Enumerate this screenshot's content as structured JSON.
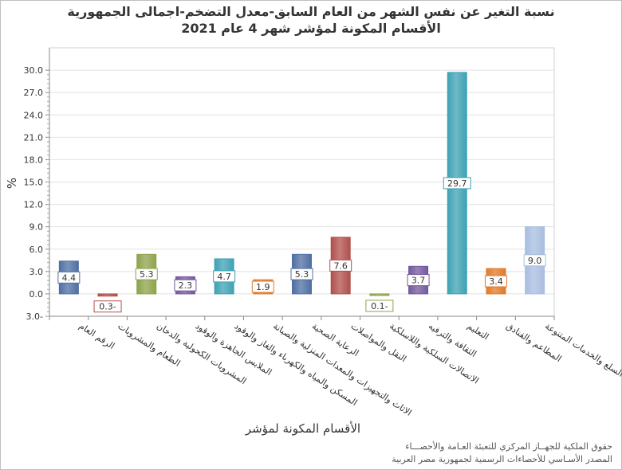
{
  "chart_data": {
    "type": "bar",
    "title": [
      "نسبة التغير عن نفس الشهر من العام السابق-معدل التضخم-اجمالى الجمهورية",
      "الأقسام المكونة لمؤشر شهر 4 عام 2021"
    ],
    "xlabel": "الأقسام المكونة لمؤشر",
    "ylabel": "%",
    "ylim": [
      -3.0,
      33.0
    ],
    "yticks": [
      "30.0",
      "27.0",
      "24.0",
      "21.0",
      "18.0",
      "15.0",
      "12.0",
      "9.0",
      "6.0",
      "3.0",
      "0.0",
      "3.0-"
    ],
    "ytick_values": [
      30,
      27,
      24,
      21,
      18,
      15,
      12,
      9,
      6,
      3,
      0,
      -3
    ],
    "grid": true,
    "categories": [
      "الرقم العام",
      "الطعام والمشروبات",
      "المشروبات الكحولية والدخان",
      "الملابس الجاهزة والوقود",
      "المسكن والمياه والكهرباء والغاز والوقود",
      "الاثاث والتجهيزات والمعدات المنزلية والصيانة",
      "الرعاية الصحية",
      "النقل والمواصلات",
      "الاتصالات السلكية واللاسلكية",
      "الثقافة والترفيه",
      "التعليم",
      "المطاعم والفنادق",
      "السلع والخدمات المتنوعة"
    ],
    "values": [
      4.4,
      -0.3,
      5.3,
      2.3,
      4.7,
      1.9,
      5.3,
      7.6,
      -0.1,
      3.7,
      29.7,
      3.4,
      9.0
    ],
    "data_labels": [
      "4.4",
      "0.3-",
      "5.3",
      "2.3",
      "4.7",
      "1.9",
      "5.3",
      "7.6",
      "0.1-",
      "3.7",
      "29.7",
      "3.4",
      "9.0"
    ],
    "colors": [
      "#4f6fa3",
      "#b0504c",
      "#8da34b",
      "#74589c",
      "#3ea2b3",
      "#e07a2a",
      "#4f6fa3",
      "#b0504c",
      "#8da34b",
      "#74589c",
      "#3ea2b3",
      "#e07a2a",
      "#a8bde0"
    ]
  },
  "footer": [
    "حقوق الملكية للجهــاز المركزي للتعبئة العـامة والأحصـــاء",
    "المصدر الأسـاسي للأحصاءات الرسمية لجمهورية مصر العربية"
  ]
}
